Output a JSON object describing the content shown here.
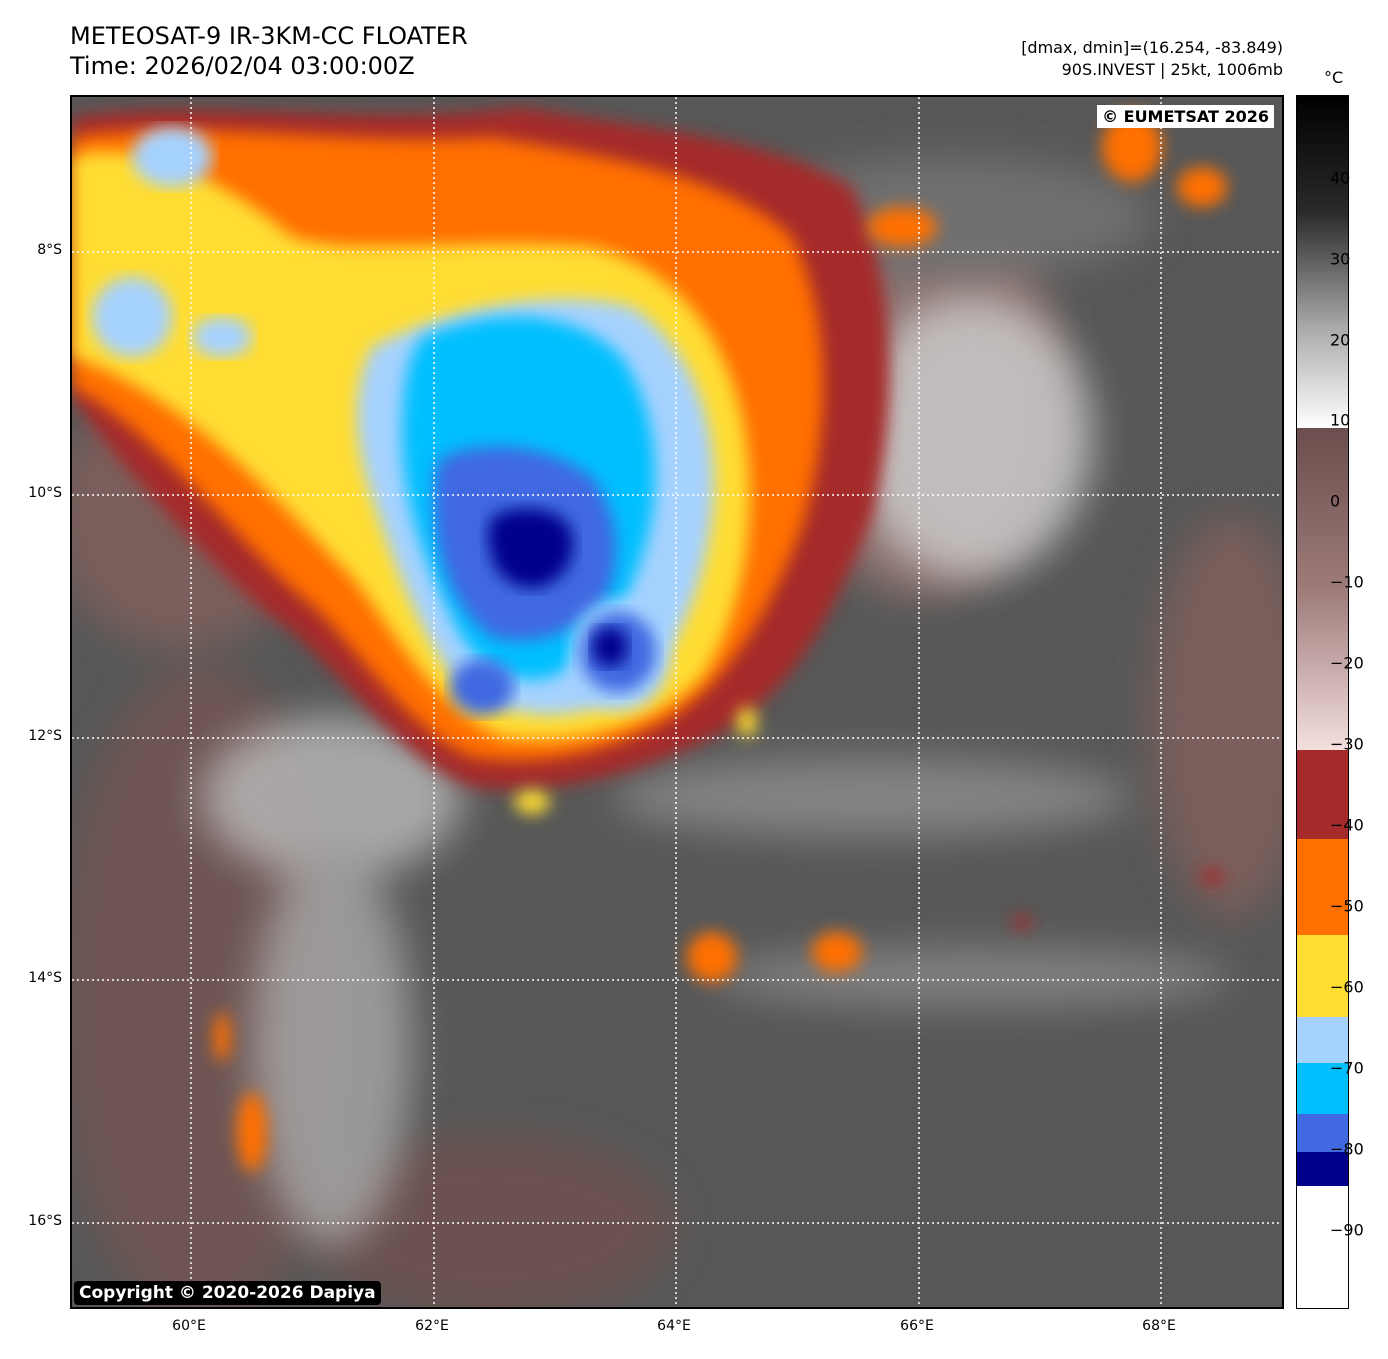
{
  "header": {
    "title_line1": "METEOSAT-9 IR-3KM-CC FLOATER",
    "title_line2": "Time: 2026/02/04 03:00:00Z",
    "dmax_dmin": "[dmax, dmin]=(16.254, -83.849)",
    "storm_info": "90S.INVEST | 25kt, 1006mb"
  },
  "map": {
    "copyright_eumetsat": "© EUMETSAT 2026",
    "copyright_dapiya": "Copyright © 2020-2026 Dapiya",
    "lat_labels": [
      "8°S",
      "10°S",
      "12°S",
      "14°S",
      "16°S"
    ],
    "lon_labels": [
      "60°E",
      "62°E",
      "64°E",
      "66°E",
      "68°E"
    ],
    "background_color": "#555555"
  },
  "colorbar": {
    "unit": "°C",
    "ticks": [
      "40",
      "30",
      "20",
      "10",
      "0",
      "−10",
      "−20",
      "−30",
      "−40",
      "−50",
      "−60",
      "−70",
      "−80",
      "−90"
    ]
  }
}
